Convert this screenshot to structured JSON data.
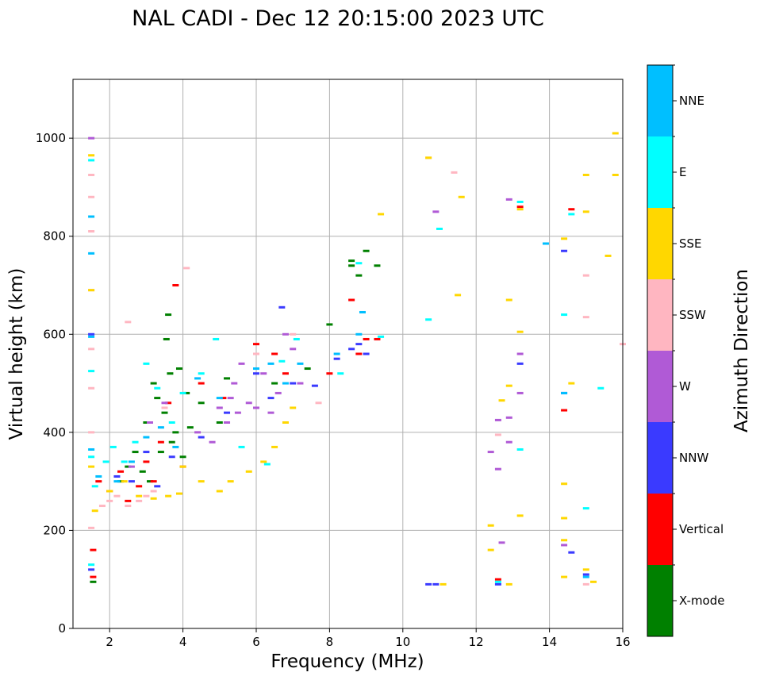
{
  "chart_data": {
    "type": "scatter",
    "title": "NAL CADI - Dec 12 20:15:00 2023 UTC",
    "xlabel": "Frequency (MHz)",
    "ylabel": "Virtual height (km)",
    "xlim": [
      1,
      16
    ],
    "ylim": [
      0,
      1120
    ],
    "xticks": [
      2,
      4,
      6,
      8,
      10,
      12,
      14,
      16
    ],
    "yticks": [
      0,
      200,
      400,
      600,
      800,
      1000
    ],
    "grid": true,
    "colorbar": {
      "label": "Azimuth Direction",
      "categories": [
        {
          "name": "X-mode",
          "color": "#008000"
        },
        {
          "name": "Vertical",
          "color": "#ff0000"
        },
        {
          "name": "NNW",
          "color": "#3a3aff"
        },
        {
          "name": "W",
          "color": "#b05ad6"
        },
        {
          "name": "SSW",
          "color": "#ffb6c1"
        },
        {
          "name": "SSE",
          "color": "#ffd700"
        },
        {
          "name": "E",
          "color": "#00ffff"
        },
        {
          "name": "NNE",
          "color": "#00bfff"
        }
      ]
    },
    "series": [
      {
        "name": "X-mode",
        "points": [
          [
            1.55,
            95
          ],
          [
            2.3,
            300
          ],
          [
            2.5,
            330
          ],
          [
            2.7,
            360
          ],
          [
            3.0,
            420
          ],
          [
            3.1,
            300
          ],
          [
            3.2,
            500
          ],
          [
            3.3,
            470
          ],
          [
            3.5,
            440
          ],
          [
            3.55,
            590
          ],
          [
            3.6,
            640
          ],
          [
            3.65,
            520
          ],
          [
            3.8,
            400
          ],
          [
            3.9,
            530
          ],
          [
            3.7,
            380
          ],
          [
            3.4,
            360
          ],
          [
            2.9,
            320
          ],
          [
            4.0,
            350
          ],
          [
            4.1,
            480
          ],
          [
            4.2,
            410
          ],
          [
            4.5,
            460
          ],
          [
            5.0,
            420
          ],
          [
            5.2,
            510
          ],
          [
            6.5,
            500
          ],
          [
            7.4,
            530
          ],
          [
            8.0,
            620
          ],
          [
            8.6,
            740
          ],
          [
            8.6,
            750
          ],
          [
            8.8,
            720
          ],
          [
            9.0,
            770
          ],
          [
            9.3,
            740
          ]
        ]
      },
      {
        "name": "Vertical",
        "points": [
          [
            1.55,
            105
          ],
          [
            1.55,
            160
          ],
          [
            1.7,
            300
          ],
          [
            2.0,
            280
          ],
          [
            2.3,
            320
          ],
          [
            2.5,
            260
          ],
          [
            2.8,
            290
          ],
          [
            3.0,
            340
          ],
          [
            3.2,
            300
          ],
          [
            3.4,
            380
          ],
          [
            3.6,
            460
          ],
          [
            3.8,
            700
          ],
          [
            4.0,
            330
          ],
          [
            4.5,
            500
          ],
          [
            5.1,
            470
          ],
          [
            6.0,
            580
          ],
          [
            6.5,
            560
          ],
          [
            6.8,
            520
          ],
          [
            8.0,
            520
          ],
          [
            8.6,
            670
          ],
          [
            8.8,
            560
          ],
          [
            9.0,
            590
          ],
          [
            9.3,
            590
          ],
          [
            12.6,
            100
          ],
          [
            13.2,
            860
          ],
          [
            14.4,
            445
          ],
          [
            14.6,
            855
          ]
        ]
      },
      {
        "name": "NNW",
        "points": [
          [
            1.5,
            120
          ],
          [
            1.5,
            600
          ],
          [
            2.2,
            310
          ],
          [
            2.6,
            300
          ],
          [
            3.0,
            360
          ],
          [
            3.3,
            290
          ],
          [
            3.7,
            350
          ],
          [
            4.5,
            390
          ],
          [
            5.2,
            440
          ],
          [
            6.0,
            520
          ],
          [
            6.4,
            470
          ],
          [
            6.7,
            655
          ],
          [
            7.0,
            500
          ],
          [
            7.6,
            495
          ],
          [
            8.2,
            550
          ],
          [
            8.6,
            570
          ],
          [
            8.8,
            580
          ],
          [
            9.0,
            560
          ],
          [
            10.7,
            90
          ],
          [
            10.9,
            90
          ],
          [
            12.6,
            90
          ],
          [
            13.2,
            540
          ],
          [
            14.4,
            480
          ],
          [
            14.4,
            770
          ],
          [
            14.6,
            155
          ],
          [
            15.0,
            110
          ]
        ]
      },
      {
        "name": "W",
        "points": [
          [
            1.5,
            1000
          ],
          [
            2.6,
            330
          ],
          [
            3.1,
            420
          ],
          [
            3.5,
            460
          ],
          [
            4.4,
            400
          ],
          [
            4.8,
            380
          ],
          [
            5.0,
            450
          ],
          [
            5.2,
            420
          ],
          [
            5.3,
            470
          ],
          [
            5.4,
            500
          ],
          [
            5.5,
            440
          ],
          [
            5.6,
            540
          ],
          [
            5.8,
            460
          ],
          [
            6.0,
            450
          ],
          [
            6.2,
            520
          ],
          [
            6.4,
            440
          ],
          [
            6.6,
            480
          ],
          [
            6.8,
            600
          ],
          [
            7.0,
            570
          ],
          [
            7.2,
            500
          ],
          [
            10.9,
            850
          ],
          [
            12.4,
            360
          ],
          [
            12.6,
            325
          ],
          [
            12.6,
            425
          ],
          [
            12.7,
            175
          ],
          [
            12.9,
            380
          ],
          [
            12.9,
            430
          ],
          [
            12.9,
            875
          ],
          [
            13.2,
            480
          ],
          [
            13.2,
            560
          ],
          [
            14.4,
            170
          ]
        ]
      },
      {
        "name": "SSW",
        "points": [
          [
            1.5,
            205
          ],
          [
            1.5,
            400
          ],
          [
            1.5,
            490
          ],
          [
            1.5,
            570
          ],
          [
            1.5,
            690
          ],
          [
            1.5,
            810
          ],
          [
            1.5,
            880
          ],
          [
            1.5,
            925
          ],
          [
            1.8,
            250
          ],
          [
            2.0,
            260
          ],
          [
            2.2,
            270
          ],
          [
            2.5,
            250
          ],
          [
            2.8,
            260
          ],
          [
            3.0,
            270
          ],
          [
            3.2,
            280
          ],
          [
            3.5,
            450
          ],
          [
            4.1,
            735
          ],
          [
            2.5,
            625
          ],
          [
            6.0,
            560
          ],
          [
            7.0,
            600
          ],
          [
            7.7,
            460
          ],
          [
            10.7,
            960
          ],
          [
            11.4,
            930
          ],
          [
            12.6,
            395
          ],
          [
            15.0,
            90
          ],
          [
            15.0,
            635
          ],
          [
            15.0,
            720
          ],
          [
            16.0,
            580
          ]
        ]
      },
      {
        "name": "SSE",
        "points": [
          [
            1.5,
            330
          ],
          [
            1.5,
            690
          ],
          [
            1.5,
            965
          ],
          [
            1.6,
            240
          ],
          [
            2.0,
            280
          ],
          [
            2.4,
            300
          ],
          [
            2.8,
            270
          ],
          [
            3.2,
            265
          ],
          [
            3.6,
            270
          ],
          [
            3.9,
            275
          ],
          [
            4.0,
            330
          ],
          [
            4.5,
            300
          ],
          [
            5.0,
            280
          ],
          [
            5.3,
            300
          ],
          [
            5.8,
            320
          ],
          [
            6.2,
            340
          ],
          [
            6.5,
            370
          ],
          [
            6.8,
            420
          ],
          [
            7.0,
            450
          ],
          [
            9.4,
            845
          ],
          [
            10.7,
            960
          ],
          [
            11.1,
            90
          ],
          [
            11.5,
            680
          ],
          [
            11.6,
            880
          ],
          [
            12.4,
            210
          ],
          [
            12.4,
            160
          ],
          [
            12.7,
            465
          ],
          [
            12.9,
            90
          ],
          [
            12.9,
            495
          ],
          [
            12.9,
            670
          ],
          [
            13.2,
            230
          ],
          [
            13.2,
            605
          ],
          [
            13.2,
            855
          ],
          [
            14.4,
            105
          ],
          [
            14.4,
            180
          ],
          [
            14.4,
            225
          ],
          [
            14.4,
            295
          ],
          [
            14.4,
            795
          ],
          [
            14.6,
            500
          ],
          [
            15.0,
            120
          ],
          [
            15.0,
            850
          ],
          [
            15.0,
            925
          ],
          [
            15.2,
            95
          ],
          [
            15.6,
            760
          ],
          [
            15.8,
            1010
          ],
          [
            15.8,
            925
          ]
        ]
      },
      {
        "name": "E",
        "points": [
          [
            1.5,
            130
          ],
          [
            1.5,
            350
          ],
          [
            1.5,
            525
          ],
          [
            1.5,
            955
          ],
          [
            1.6,
            290
          ],
          [
            1.9,
            340
          ],
          [
            2.1,
            370
          ],
          [
            2.4,
            340
          ],
          [
            2.7,
            380
          ],
          [
            3.0,
            540
          ],
          [
            3.3,
            490
          ],
          [
            3.7,
            420
          ],
          [
            4.0,
            480
          ],
          [
            4.5,
            520
          ],
          [
            4.9,
            590
          ],
          [
            5.6,
            370
          ],
          [
            6.3,
            335
          ],
          [
            6.7,
            545
          ],
          [
            7.1,
            590
          ],
          [
            8.3,
            520
          ],
          [
            8.8,
            745
          ],
          [
            9.4,
            595
          ],
          [
            10.7,
            630
          ],
          [
            11.0,
            815
          ],
          [
            12.6,
            95
          ],
          [
            13.2,
            365
          ],
          [
            13.2,
            870
          ],
          [
            14.4,
            640
          ],
          [
            14.6,
            845
          ],
          [
            15.0,
            245
          ],
          [
            15.4,
            490
          ]
        ]
      },
      {
        "name": "NNE",
        "points": [
          [
            1.5,
            365
          ],
          [
            1.5,
            595
          ],
          [
            1.5,
            765
          ],
          [
            1.5,
            840
          ],
          [
            1.7,
            310
          ],
          [
            2.2,
            300
          ],
          [
            2.6,
            340
          ],
          [
            3.0,
            390
          ],
          [
            3.4,
            410
          ],
          [
            3.8,
            370
          ],
          [
            4.4,
            510
          ],
          [
            5.0,
            470
          ],
          [
            6.0,
            530
          ],
          [
            6.4,
            540
          ],
          [
            6.8,
            500
          ],
          [
            7.2,
            540
          ],
          [
            8.2,
            560
          ],
          [
            8.8,
            600
          ],
          [
            8.9,
            645
          ],
          [
            13.9,
            785
          ],
          [
            14.4,
            480
          ],
          [
            15.0,
            105
          ]
        ]
      }
    ]
  }
}
